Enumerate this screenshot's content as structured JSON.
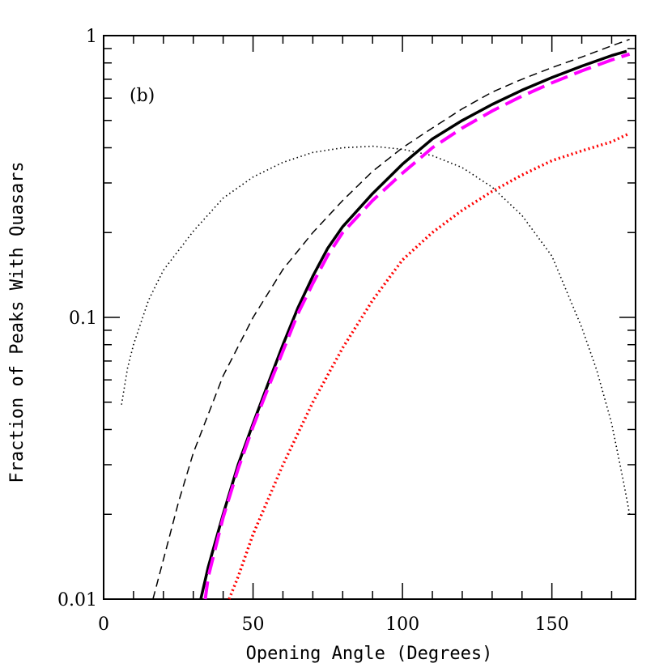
{
  "chart_data": {
    "type": "line",
    "panel_label": "(b)",
    "xlabel": "Opening Angle (Degrees)",
    "ylabel": "Fraction of Peaks With Quasars",
    "xlim": [
      0,
      178
    ],
    "ylim": [
      0.01,
      1
    ],
    "yscale": "log",
    "x_ticks": [
      0,
      50,
      100,
      150
    ],
    "x_tick_labels": [
      "0",
      "50",
      "100",
      "150"
    ],
    "y_ticks": [
      0.01,
      0.1,
      1
    ],
    "y_tick_labels": [
      "0.01",
      "0.1",
      "1"
    ],
    "series": [
      {
        "name": "solid-black",
        "color": "#000000",
        "style": "solid",
        "x": [
          32.5,
          35,
          40,
          45,
          50,
          55,
          60,
          65,
          70,
          75,
          80,
          90,
          100,
          110,
          120,
          130,
          140,
          150,
          160,
          170,
          175
        ],
        "y": [
          0.01,
          0.013,
          0.02,
          0.03,
          0.042,
          0.058,
          0.08,
          0.108,
          0.14,
          0.176,
          0.21,
          0.275,
          0.35,
          0.43,
          0.5,
          0.57,
          0.64,
          0.71,
          0.78,
          0.85,
          0.88
        ]
      },
      {
        "name": "magenta-long-dashed",
        "color": "#ff00ff",
        "style": "long-dashed",
        "x": [
          34,
          35,
          40,
          45,
          50,
          55,
          60,
          65,
          70,
          75,
          80,
          90,
          100,
          110,
          120,
          130,
          140,
          150,
          160,
          170,
          176
        ],
        "y": [
          0.01,
          0.012,
          0.0195,
          0.029,
          0.041,
          0.056,
          0.076,
          0.103,
          0.132,
          0.166,
          0.2,
          0.26,
          0.325,
          0.4,
          0.47,
          0.54,
          0.61,
          0.68,
          0.75,
          0.82,
          0.86
        ]
      },
      {
        "name": "black-dashed",
        "color": "#000000",
        "style": "dashed",
        "x": [
          16.5,
          20,
          25,
          30,
          40,
          50,
          60,
          70,
          80,
          90,
          100,
          110,
          120,
          130,
          140,
          150,
          160,
          170,
          176
        ],
        "y": [
          0.01,
          0.0138,
          0.022,
          0.033,
          0.062,
          0.1,
          0.148,
          0.2,
          0.26,
          0.33,
          0.4,
          0.47,
          0.55,
          0.63,
          0.7,
          0.77,
          0.84,
          0.92,
          0.97
        ]
      },
      {
        "name": "red-dotted",
        "color": "#ff0000",
        "style": "dotted",
        "x": [
          42,
          45,
          50,
          60,
          70,
          80,
          90,
          100,
          110,
          120,
          130,
          140,
          150,
          160,
          170,
          176
        ],
        "y": [
          0.01,
          0.012,
          0.017,
          0.03,
          0.05,
          0.078,
          0.115,
          0.16,
          0.2,
          0.24,
          0.28,
          0.32,
          0.36,
          0.39,
          0.42,
          0.45
        ]
      },
      {
        "name": "black-dotted",
        "color": "#000000",
        "style": "fine-dotted",
        "x": [
          6,
          8,
          10,
          15,
          20,
          30,
          40,
          50,
          60,
          70,
          80,
          90,
          100,
          110,
          120,
          130,
          140,
          150,
          160,
          165,
          170,
          174,
          176
        ],
        "y": [
          0.049,
          0.066,
          0.08,
          0.115,
          0.147,
          0.202,
          0.265,
          0.315,
          0.355,
          0.385,
          0.4,
          0.405,
          0.395,
          0.375,
          0.34,
          0.29,
          0.23,
          0.165,
          0.092,
          0.065,
          0.042,
          0.026,
          0.02
        ]
      }
    ]
  }
}
